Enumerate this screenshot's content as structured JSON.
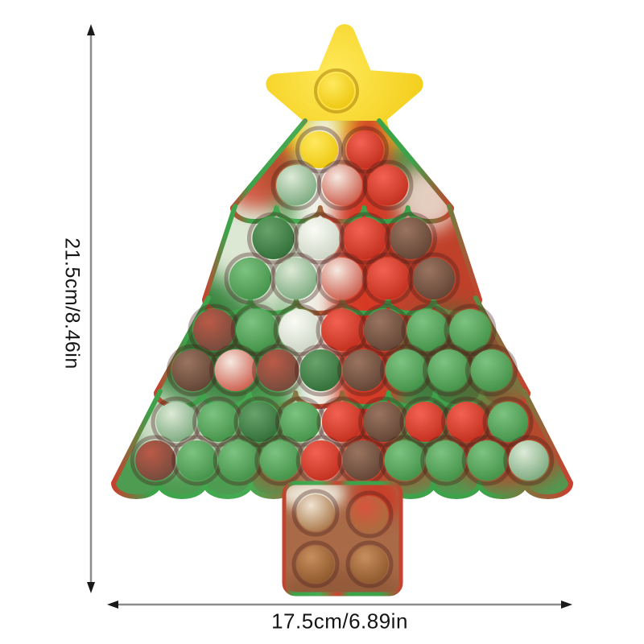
{
  "dimensions": {
    "height_label": "21.5cm/8.46in",
    "width_label": "17.5cm/6.89in"
  },
  "figure": {
    "description": "Christmas-tree shaped push-pop bubble fidget toy in red/green/white tie-dye silicone with a yellow star on top and a brown trunk with four bubbles",
    "palette": {
      "tree_base": "#4e9c52",
      "trunk_base": "#a96a48",
      "star": [
        "#ffe95a",
        "#f0c70b"
      ],
      "ring": "rgba(70,30,25,0.35)",
      "dimension_line": "#8c8c8c",
      "arrowhead": "#1a1a1a",
      "label_text": "#151515",
      "domes": {
        "yellow": [
          "#ffe95e",
          "#ecc50a"
        ],
        "red": [
          "#f26252",
          "#bf2b1a"
        ],
        "green": [
          "#7dc281",
          "#3f8f45"
        ],
        "dkgreen": [
          "#68a36b",
          "#2e6b34"
        ],
        "white": [
          "#fbfcf5",
          "#c9d2c2"
        ],
        "brown": [
          "#9a7460",
          "#5e4132"
        ],
        "gw": [
          "#ddead7",
          "#74a577"
        ],
        "wr": [
          "#f6eae2",
          "#c95240"
        ],
        "rg": [
          "#bb5a47",
          "#6e4a3c"
        ],
        "bw": [
          "#efe3d2",
          "#a5703f"
        ],
        "br": [
          "#d8543d",
          "#a5703f"
        ],
        "tbrown": [
          "#c78e5d",
          "#8a5529"
        ]
      }
    },
    "edge_gradient": [
      [
        0,
        "#c8402e"
      ],
      [
        0.08,
        "#3da24a"
      ],
      [
        0.3,
        "#46ab52"
      ],
      [
        0.46,
        "#cf4130"
      ],
      [
        0.56,
        "#3da24a"
      ],
      [
        0.82,
        "#3da24a"
      ],
      [
        1,
        "#c8402e"
      ]
    ],
    "tie_dye_patches": [
      [
        415,
        170,
        85,
        32,
        0,
        "#f3d41a",
        10,
        0.95
      ],
      [
        402,
        380,
        42,
        250,
        0,
        "#f0f2e8",
        12,
        1
      ],
      [
        457,
        380,
        44,
        250,
        0,
        "#d63b27",
        12,
        1
      ],
      [
        592,
        330,
        115,
        150,
        0,
        "#ce3826",
        16,
        0.9
      ],
      [
        630,
        545,
        80,
        60,
        0,
        "#c73b28",
        14,
        0.85
      ],
      [
        298,
        295,
        55,
        110,
        -20,
        "#edf0e3",
        13,
        0.9
      ],
      [
        225,
        525,
        65,
        55,
        0,
        "#e9ece0",
        13,
        0.85
      ],
      [
        258,
        430,
        75,
        85,
        0,
        "#317e39",
        15,
        0.8
      ],
      [
        318,
        208,
        48,
        52,
        0,
        "#d23b28",
        11,
        0.8
      ],
      [
        560,
        455,
        65,
        75,
        0,
        "#3b6f37",
        14,
        0.7
      ],
      [
        532,
        248,
        38,
        40,
        0,
        "#eef0e5",
        11,
        0.8
      ],
      [
        430,
        588,
        120,
        26,
        0,
        "#cc3e2b",
        12,
        0.6
      ]
    ],
    "trunk_patches": [
      [
        388,
        614,
        42,
        20,
        0,
        "#ece3d4",
        8,
        1
      ],
      [
        468,
        620,
        30,
        30,
        0,
        "#cc3b28",
        9,
        0.9
      ],
      [
        425,
        733,
        80,
        25,
        0,
        "#8a5435",
        10,
        0.7
      ]
    ],
    "star_bubble_color": "yellow",
    "bubble_rows": [
      {
        "colors": [
          "yellow",
          "red"
        ]
      },
      {
        "colors": [
          "gw",
          "wr",
          "red"
        ]
      },
      {
        "colors": [
          "dkgreen",
          "white",
          "red",
          "brown"
        ]
      },
      {
        "colors": [
          "green",
          "gw",
          "wr",
          "red",
          "brown"
        ]
      },
      {
        "colors": [
          "rg",
          "green",
          "white",
          "red",
          "brown",
          "green",
          "green"
        ]
      },
      {
        "colors": [
          "brown",
          "wr",
          "rg",
          "dkgreen",
          "brown",
          "green",
          "green",
          "green"
        ]
      },
      {
        "colors": [
          "gw",
          "green",
          "dkgreen",
          "green",
          "red",
          "brown",
          "red",
          "red",
          "green"
        ]
      },
      {
        "colors": [
          "rg",
          "green",
          "green",
          "green",
          "red",
          "brown",
          "green",
          "green",
          "green",
          "gw"
        ]
      }
    ],
    "trunk_bubble_colors": [
      "bw",
      "br",
      "tbrown",
      "tbrown"
    ]
  }
}
